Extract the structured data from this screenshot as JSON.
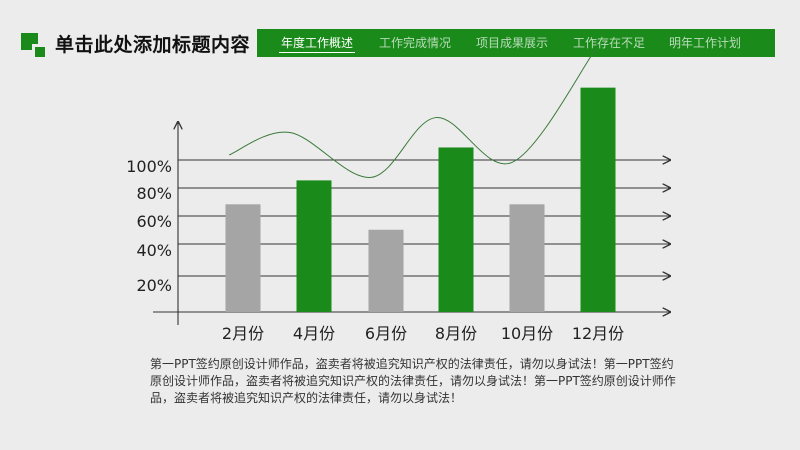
{
  "header": {
    "title": "单击此处添加标题内容",
    "nav": [
      {
        "label": "年度工作概述",
        "active": true
      },
      {
        "label": "工作完成情况",
        "active": false
      },
      {
        "label": "项目成果展示",
        "active": false
      },
      {
        "label": "工作存在不足",
        "active": false
      },
      {
        "label": "明年工作计划",
        "active": false
      }
    ]
  },
  "colors": {
    "accent": "#1a8a1a",
    "secondary": "#a5a5a5",
    "background": "#ececec"
  },
  "chart_data": {
    "type": "bar",
    "categories": [
      "2月份",
      "4月份",
      "6月份",
      "8月份",
      "10月份",
      "12月份"
    ],
    "values": [
      72,
      88,
      55,
      110,
      72,
      150
    ],
    "bar_colors": [
      "#a5a5a5",
      "#1a8a1a",
      "#a5a5a5",
      "#1a8a1a",
      "#a5a5a5",
      "#1a8a1a"
    ],
    "y_ticks": [
      "20%",
      "40%",
      "60%",
      "80%",
      "100%"
    ],
    "y_tick_values": [
      20,
      40,
      60,
      80,
      100
    ],
    "trend_line": [
      105,
      120,
      90,
      130,
      100,
      175
    ],
    "ylim": [
      0,
      160
    ],
    "grid": true
  },
  "caption": "第一PPT签约原创设计师作品，盗卖者将被追究知识产权的法律责任，请勿以身试法！第一PPT签约原创设计师作品，盗卖者将被追究知识产权的法律责任，请勿以身试法！第一PPT签约原创设计师作品，盗卖者将被追究知识产权的法律责任，请勿以身试法！"
}
